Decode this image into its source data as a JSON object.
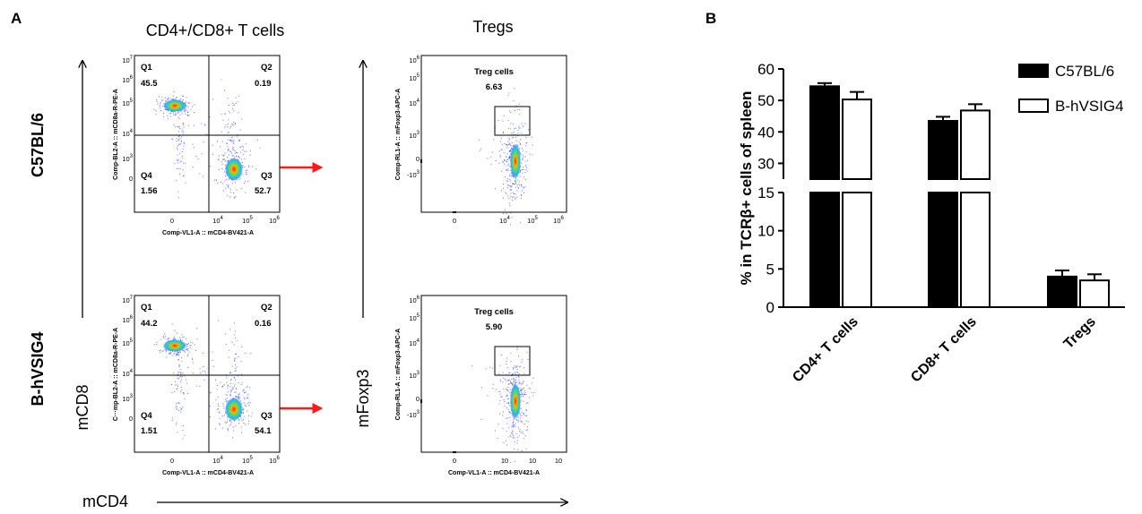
{
  "panels": {
    "a": "A",
    "b": "B"
  },
  "flow": {
    "col_titles": [
      "CD4+/CD8+ T cells",
      "Tregs"
    ],
    "row_labels": [
      "C57BL/6",
      "B-hVSIG4"
    ],
    "axis_y_left": "mCD8",
    "axis_y_right": "mFoxp3",
    "axis_x_bottom": "mCD4",
    "quad_plots": [
      {
        "ylabel": "Comp-BL2-A :: mCD8a-R-PE-A",
        "xlabel": "Comp-VL1-A :: mCD4-BV421-A",
        "yticks": [
          "10^7",
          "10^6",
          "10^5",
          "10^4",
          "10^3",
          "0"
        ],
        "xticks": [
          "0",
          "10^4",
          "10^5",
          "10^6"
        ],
        "quadrants": [
          {
            "name": "Q1",
            "value": "45.5"
          },
          {
            "name": "Q2",
            "value": "0.19"
          },
          {
            "name": "Q3",
            "value": "52.7"
          },
          {
            "name": "Q4",
            "value": "1.56"
          }
        ]
      },
      {
        "ylabel": "C···mp-BL2-A :: mCD8a-R-PE-A",
        "xlabel": "Comp-VL1-A :: mCD4-BV421-A",
        "yticks": [
          "10^7",
          "10^6",
          "10^5",
          "10^4",
          "10^3",
          "0"
        ],
        "xticks": [
          "0",
          "10^4",
          "10^5",
          "10^6"
        ],
        "quadrants": [
          {
            "name": "Q1",
            "value": "44.2"
          },
          {
            "name": "Q2",
            "value": "0.16"
          },
          {
            "name": "Q3",
            "value": "54.1"
          },
          {
            "name": "Q4",
            "value": "1.51"
          }
        ]
      }
    ],
    "treg_plots": [
      {
        "gate_label": "Treg cells",
        "gate_value": "6.63",
        "ylabel": "Comp-RL1-A :: mFoxp3-APC-A",
        "xlabel": "",
        "yticks": [
          "10^6",
          "10^5",
          "10^4",
          "10^3",
          "0",
          "-10^3"
        ],
        "xticks": [
          "0",
          "10^4",
          "10^5",
          "10^6"
        ]
      },
      {
        "gate_label": "Treg cells",
        "gate_value": "5.90",
        "ylabel": "Comp-RL1-A :: mFoxp3-APC-A",
        "xlabel": "Comp-VL1-A :: mCD4-BV421-A",
        "yticks": [
          "10^6",
          "10^5",
          "10^4",
          "10^3",
          "0",
          "-10^3"
        ],
        "xticks": [
          "0",
          "10",
          "10",
          "10"
        ]
      }
    ],
    "colors": {
      "arrow": "#ff1a1a",
      "dots": "#2b3fff",
      "core": "#ff2a00"
    }
  },
  "chart_data": {
    "type": "bar",
    "categories": [
      "CD4+ T cells",
      "CD8+ T cells",
      "Tregs"
    ],
    "series": [
      {
        "name": "C57BL/6",
        "values": [
          54.5,
          43.5,
          4.0
        ],
        "errors": [
          1.0,
          1.3,
          0.8
        ],
        "fill": "#000000"
      },
      {
        "name": "B-hVSIG4",
        "values": [
          50.3,
          46.8,
          3.5
        ],
        "errors": [
          2.4,
          2.0,
          0.8
        ],
        "fill": "#ffffff"
      }
    ],
    "ylabel": "% in TCRβ+ cells of spleen",
    "xlabel": "",
    "yaxis_broken": true,
    "lower_segment": {
      "range": [
        0,
        15
      ],
      "ticks": [
        "0",
        "5",
        "10",
        "15"
      ]
    },
    "upper_segment": {
      "range": [
        25,
        60
      ],
      "ticks": [
        "30",
        "40",
        "50",
        "60"
      ]
    },
    "legend_position": "top-right",
    "grid": false
  }
}
